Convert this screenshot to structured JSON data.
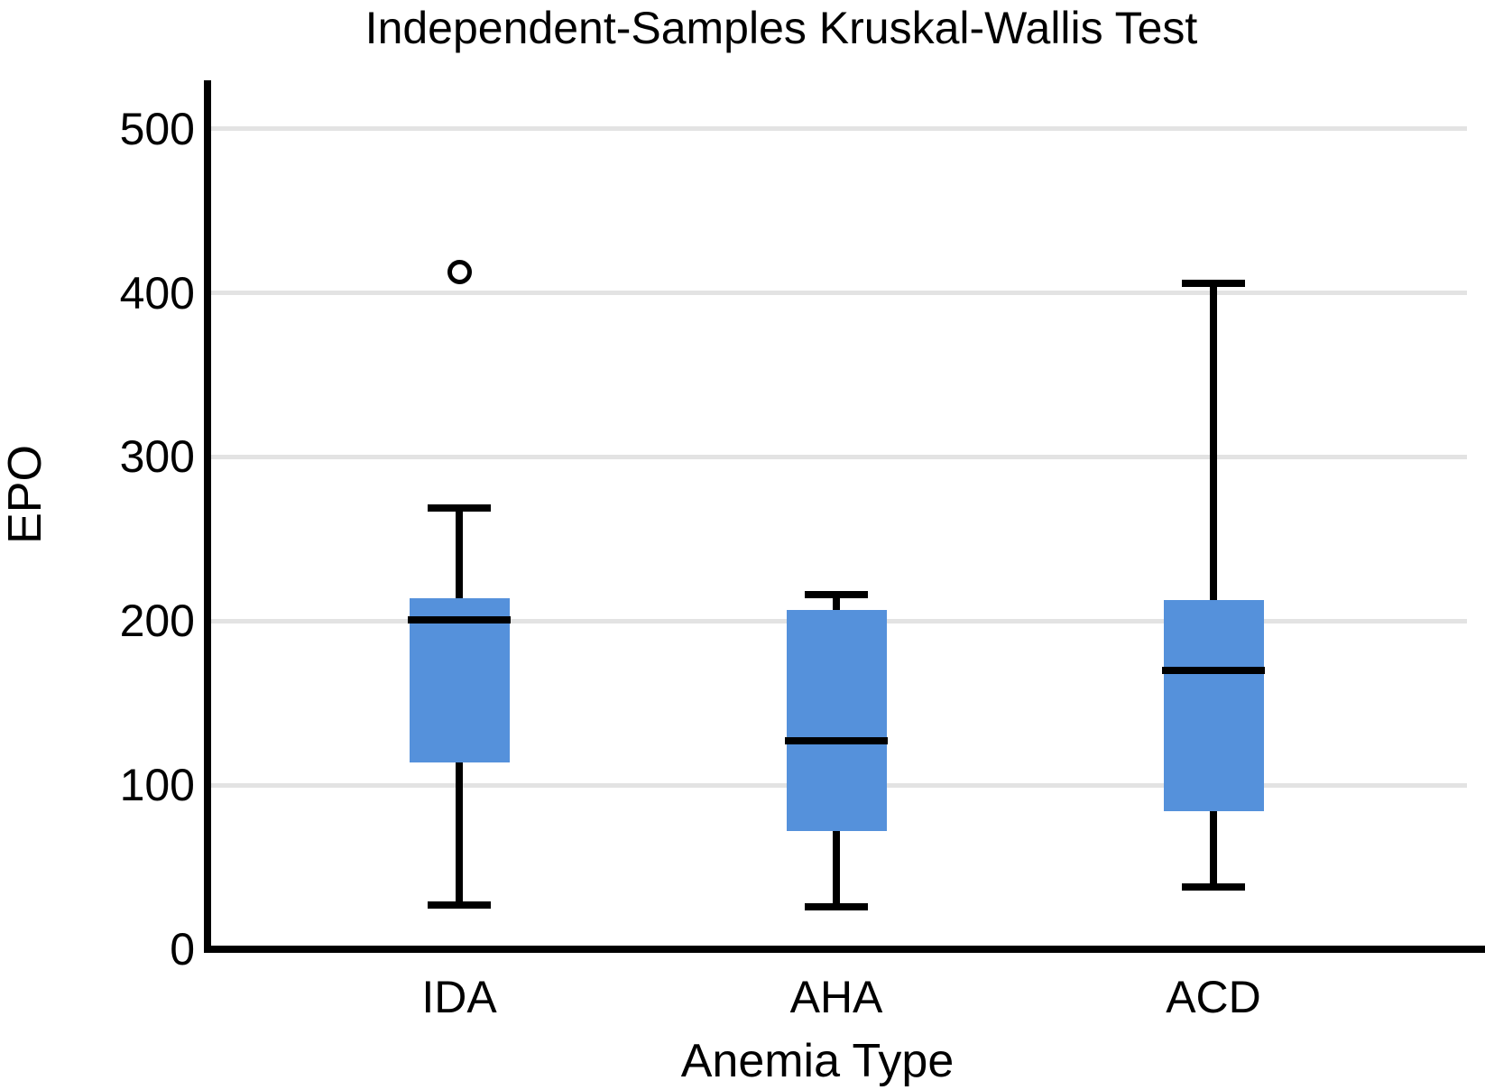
{
  "chart_data": {
    "type": "boxplot",
    "title": "Independent-Samples Kruskal-Wallis Test",
    "xlabel": "Anemia Type",
    "ylabel": "EPO",
    "categories": [
      "IDA",
      "AHA",
      "ACD"
    ],
    "yticks": [
      0,
      100,
      200,
      300,
      400,
      500
    ],
    "ylim": [
      0,
      530
    ],
    "grid": "horizontal",
    "legend": "none",
    "box_color": "#5591DB",
    "line_color": "#000000",
    "gridline_color": "#E3E3E3",
    "boxes": [
      {
        "category": "IDA",
        "whisker_low": 27,
        "q1": 114,
        "median": 201,
        "q3": 214,
        "whisker_high": 269,
        "outliers": [
          413
        ]
      },
      {
        "category": "AHA",
        "whisker_low": 26,
        "q1": 72,
        "median": 127,
        "q3": 207,
        "whisker_high": 216,
        "outliers": []
      },
      {
        "category": "ACD",
        "whisker_low": 38,
        "q1": 84,
        "median": 170,
        "q3": 213,
        "whisker_high": 406,
        "outliers": []
      }
    ]
  }
}
